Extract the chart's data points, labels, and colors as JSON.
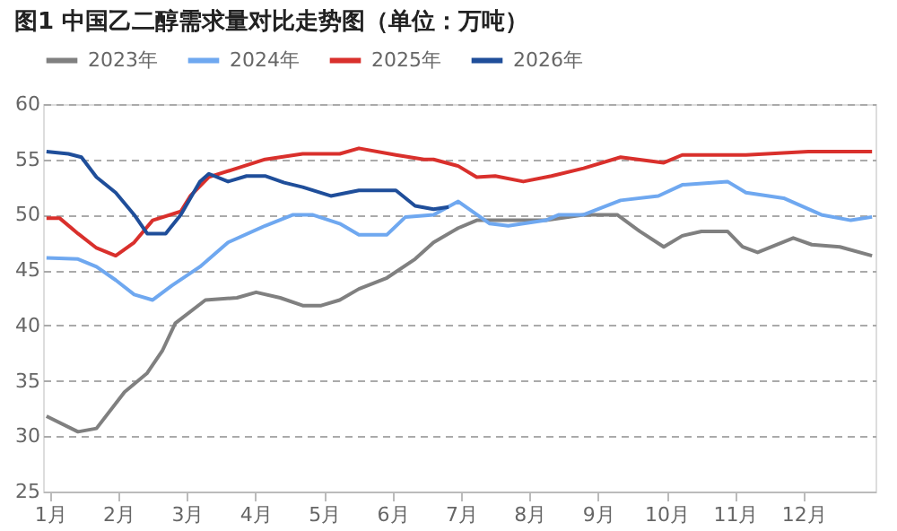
{
  "chart_data": {
    "type": "line",
    "title": "图1 中国乙二醇需求量对比走势图（单位：万吨）",
    "xlim": [
      0.9,
      13.05
    ],
    "xticks": [
      {
        "value": 1,
        "label": "1月"
      },
      {
        "value": 2,
        "label": "2月"
      },
      {
        "value": 3,
        "label": "3月"
      },
      {
        "value": 4,
        "label": "4月"
      },
      {
        "value": 5,
        "label": "5月"
      },
      {
        "value": 6,
        "label": "6月"
      },
      {
        "value": 7,
        "label": "7月"
      },
      {
        "value": 8,
        "label": "8月"
      },
      {
        "value": 9,
        "label": "9月"
      },
      {
        "value": 10,
        "label": "10月"
      },
      {
        "value": 11,
        "label": "11月"
      },
      {
        "value": 12,
        "label": "12月"
      }
    ],
    "ylim": [
      25,
      60
    ],
    "yticks": [
      25,
      30,
      35,
      40,
      45,
      50,
      55,
      60
    ],
    "grid": "y",
    "legend": "top",
    "marker": "none",
    "line_style": "solid",
    "series": [
      {
        "name": "2023年",
        "color": "#808080",
        "x": [
          0.95,
          1.41,
          1.68,
          2.09,
          2.42,
          2.64,
          2.83,
          3.27,
          3.73,
          4.01,
          4.36,
          4.69,
          4.96,
          5.23,
          5.51,
          5.92,
          6.33,
          6.6,
          6.96,
          7.23,
          8.24,
          8.79,
          9.28,
          9.61,
          9.96,
          10.23,
          10.51,
          10.89,
          11.11,
          11.33,
          11.85,
          12.12,
          12.53,
          13.0
        ],
        "values": [
          31.8,
          30.4,
          30.7,
          34.0,
          35.7,
          37.7,
          40.2,
          42.3,
          42.5,
          43.0,
          42.5,
          41.8,
          41.8,
          42.3,
          43.3,
          44.3,
          46.0,
          47.5,
          48.8,
          49.5,
          49.5,
          50.0,
          50.0,
          48.5,
          47.1,
          48.1,
          48.5,
          48.5,
          47.1,
          46.6,
          47.9,
          47.3,
          47.1,
          46.3
        ]
      },
      {
        "name": "2024年",
        "color": "#6fa8f0",
        "x": [
          0.95,
          1.41,
          1.68,
          1.96,
          2.23,
          2.5,
          2.78,
          3.19,
          3.6,
          4.14,
          4.55,
          4.83,
          5.23,
          5.51,
          5.92,
          6.19,
          6.6,
          6.96,
          7.42,
          7.69,
          8.24,
          8.43,
          8.79,
          9.33,
          9.88,
          10.23,
          10.89,
          11.16,
          11.71,
          12.26,
          12.69,
          13.0
        ],
        "values": [
          46.1,
          46.0,
          45.3,
          44.1,
          42.8,
          42.3,
          43.6,
          45.3,
          47.5,
          49.0,
          50.0,
          50.0,
          49.2,
          48.2,
          48.2,
          49.8,
          50.0,
          51.2,
          49.2,
          49.0,
          49.5,
          50.0,
          50.0,
          51.3,
          51.7,
          52.7,
          53.0,
          52.0,
          51.5,
          50.0,
          49.5,
          49.8
        ]
      },
      {
        "name": "2025年",
        "color": "#d9302c",
        "x": [
          0.95,
          1.14,
          1.41,
          1.68,
          1.96,
          2.23,
          2.5,
          2.91,
          3.05,
          3.32,
          3.73,
          4.14,
          4.69,
          5.23,
          5.51,
          6.05,
          6.46,
          6.6,
          6.96,
          7.23,
          7.5,
          7.91,
          8.32,
          8.79,
          9.33,
          9.96,
          10.23,
          11.16,
          12.07,
          13.0
        ],
        "values": [
          49.7,
          49.7,
          48.3,
          47.0,
          46.3,
          47.5,
          49.5,
          50.3,
          51.7,
          53.4,
          54.2,
          55.0,
          55.5,
          55.5,
          56.0,
          55.4,
          55.0,
          55.0,
          54.4,
          53.4,
          53.5,
          53.0,
          53.5,
          54.2,
          55.2,
          54.7,
          55.4,
          55.4,
          55.7,
          55.7
        ]
      },
      {
        "name": "2026年",
        "color": "#1f4e9a",
        "x": [
          0.95,
          1.27,
          1.46,
          1.68,
          1.96,
          2.23,
          2.42,
          2.69,
          2.91,
          3.19,
          3.32,
          3.6,
          3.87,
          4.14,
          4.42,
          4.69,
          5.1,
          5.51,
          6.05,
          6.33,
          6.6,
          6.82
        ],
        "values": [
          55.7,
          55.5,
          55.2,
          53.4,
          52.0,
          50.0,
          48.3,
          48.3,
          50.0,
          53.0,
          53.7,
          53.0,
          53.5,
          53.5,
          52.9,
          52.5,
          51.7,
          52.2,
          52.2,
          50.8,
          50.5,
          50.7
        ]
      }
    ]
  }
}
